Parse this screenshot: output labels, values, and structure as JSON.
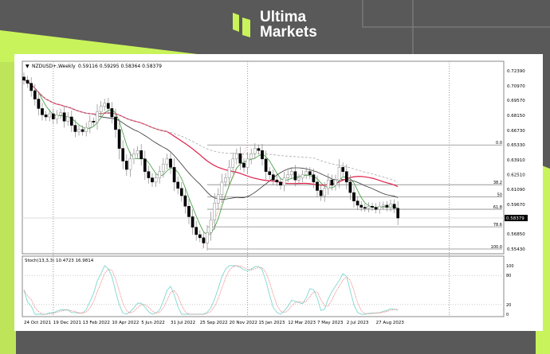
{
  "brand": {
    "name_line1": "Ultima",
    "name_line2": "Markets",
    "colors": {
      "lime": "#c9f35a",
      "dark": "#595959"
    }
  },
  "chart_data": {
    "type": "candlestick",
    "symbol_header": "NZDUSD+,Weekly",
    "ohlc_header": "0.59116 0.59295 0.58364 0.58379",
    "current_price_label": "0.58379",
    "x_tick_labels": [
      "24 Oct 2021",
      "19 Dec 2021",
      "13 Feb 2022",
      "10 Apr 2022",
      "5 Jun 2022",
      "31 Jul 2022",
      "25 Sep 2022",
      "20 Nov 2022",
      "15 Jan 2023",
      "12 Mar 2023",
      "7 May 2023",
      "2 Jul 2023",
      "27 Aug 2023"
    ],
    "y_tick_labels": [
      "0.72390",
      "0.70970",
      "0.69570",
      "0.68150",
      "0.66730",
      "0.65330",
      "0.63910",
      "0.62510",
      "0.61090",
      "0.59670",
      "0.56850",
      "0.55430"
    ],
    "ylim": [
      0.5543,
      0.7239
    ],
    "closes": [
      0.715,
      0.712,
      0.705,
      0.697,
      0.688,
      0.682,
      0.68,
      0.683,
      0.678,
      0.682,
      0.684,
      0.676,
      0.68,
      0.672,
      0.666,
      0.668,
      0.666,
      0.67,
      0.676,
      0.675,
      0.685,
      0.69,
      0.693,
      0.688,
      0.68,
      0.668,
      0.65,
      0.638,
      0.63,
      0.64,
      0.645,
      0.648,
      0.64,
      0.628,
      0.622,
      0.618,
      0.622,
      0.628,
      0.635,
      0.64,
      0.632,
      0.618,
      0.612,
      0.605,
      0.595,
      0.585,
      0.575,
      0.568,
      0.565,
      0.56,
      0.57,
      0.582,
      0.598,
      0.606,
      0.618,
      0.622,
      0.632,
      0.64,
      0.645,
      0.636,
      0.632,
      0.64,
      0.645,
      0.65,
      0.648,
      0.64,
      0.628,
      0.625,
      0.62,
      0.618,
      0.615,
      0.622,
      0.625,
      0.628,
      0.62,
      0.622,
      0.625,
      0.628,
      0.625,
      0.618,
      0.61,
      0.605,
      0.612,
      0.62,
      0.615,
      0.62,
      0.632,
      0.628,
      0.618,
      0.608,
      0.6,
      0.596,
      0.594,
      0.593,
      0.595,
      0.594,
      0.592,
      0.595,
      0.596,
      0.594,
      0.597,
      0.593,
      0.58379
    ],
    "fibonacci": [
      {
        "label": "0.0",
        "price": 0.6533
      },
      {
        "label": "38.2",
        "price": 0.6155
      },
      {
        "label": "50",
        "price": 0.6038
      },
      {
        "label": "61.8",
        "price": 0.5921
      },
      {
        "label": "78.6",
        "price": 0.5754
      },
      {
        "label": "100.0",
        "price": 0.5543
      }
    ],
    "indicator": {
      "header": "Stoch(13,3,3) 10.4723 16.9814",
      "y_tick_labels": [
        "100",
        "80",
        "20",
        "0"
      ],
      "levels": [
        20,
        80
      ],
      "colors": {
        "k": "#7fd8d0",
        "d": "#f08080"
      }
    },
    "series_colors": {
      "fast_ma": "#3a9a3a",
      "mid_ma": "#333333",
      "slow_ma": "#e0204a",
      "long_ma": "#aaaaaa",
      "bull": "#ffffff",
      "bear": "#000000"
    }
  }
}
